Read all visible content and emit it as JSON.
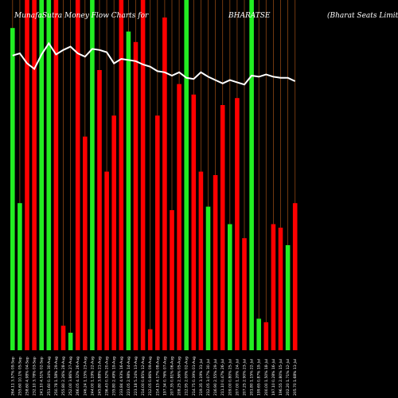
{
  "chart_data": {
    "type": "bar",
    "title_left": "MunafaSutra Money Flow Charts for",
    "title_symbol": "BHARATSE",
    "title_company": "(Bharat Seats Limit",
    "colors": {
      "up": "#22ee22",
      "down": "#ff0000",
      "line": "#ffffff",
      "grid": "#8b4513",
      "background": "#000000"
    },
    "volume_max": 100,
    "price_range": [
      0,
      100
    ],
    "bars": [
      {
        "label": "264.11 3.57% 09-Sep",
        "color": "up",
        "volume": 92,
        "price": 93
      },
      {
        "label": "255.60 10.1% 05-Sep",
        "color": "up",
        "volume": 42,
        "price": 95
      },
      {
        "label": "258.60 4.98% 04-Sep",
        "color": "down",
        "volume": 100,
        "price": 86
      },
      {
        "label": "232.10 3.78% 03-Sep",
        "color": "down",
        "volume": 100,
        "price": 81
      },
      {
        "label": "241.10 4.51% 02-Sep",
        "color": "up",
        "volume": 100,
        "price": 94
      },
      {
        "label": "251.60 0.34% 30-Aug",
        "color": "up",
        "volume": 100,
        "price": 104
      },
      {
        "label": "250.78 1.58% 29-Aug",
        "color": "down",
        "volume": 100,
        "price": 94
      },
      {
        "label": "255.80 2.26% 28-Aug",
        "color": "down",
        "volume": 7,
        "price": 98
      },
      {
        "label": "252.00 3.86% 27-Aug",
        "color": "up",
        "volume": 5,
        "price": 101
      },
      {
        "label": "266.05 4.32% 26-Aug",
        "color": "down",
        "volume": 100,
        "price": 95
      },
      {
        "label": "246.24 1.15% 23-Aug",
        "color": "down",
        "volume": 61,
        "price": 92
      },
      {
        "label": "244.00 1.19% 22-Aug",
        "color": "up",
        "volume": 100,
        "price": 99
      },
      {
        "label": "245.80 3.88% 21-Aug",
        "color": "down",
        "volume": 80,
        "price": 98
      },
      {
        "label": "236.43 0.52% 20-Aug",
        "color": "down",
        "volume": 51,
        "price": 96
      },
      {
        "label": "235.80 2.49% 19-Aug",
        "color": "down",
        "volume": 67,
        "price": 86
      },
      {
        "label": "233.84 4.93% 16-Aug",
        "color": "down",
        "volume": 100,
        "price": 90
      },
      {
        "label": "223.05 2.98% 14-Aug",
        "color": "up",
        "volume": 91,
        "price": 89
      },
      {
        "label": "223.18 5.24% 13-Aug",
        "color": "down",
        "volume": 88,
        "price": 88
      },
      {
        "label": "214.00 0.85% 12-Aug",
        "color": "down",
        "volume": 100,
        "price": 85
      },
      {
        "label": "212.05 0.86% 09-Aug",
        "color": "down",
        "volume": 6,
        "price": 83
      },
      {
        "label": "214.15 4.17% 08-Aug",
        "color": "down",
        "volume": 67,
        "price": 79
      },
      {
        "label": "197.34 0.76% 07-Aug",
        "color": "down",
        "volume": 95,
        "price": 78
      },
      {
        "label": "207.35 0.81% 06-Aug",
        "color": "down",
        "volume": 40,
        "price": 75
      },
      {
        "label": "208.25 2.56% 05-Aug",
        "color": "down",
        "volume": 76,
        "price": 78
      },
      {
        "label": "212.95 2.00% 02-Aug",
        "color": "up",
        "volume": 114,
        "price": 73
      },
      {
        "label": "214.75 0.39% 01-Aug",
        "color": "down",
        "volume": 73,
        "price": 72
      },
      {
        "label": "219.35 3.19% 31-Jul",
        "color": "down",
        "volume": 51,
        "price": 78
      },
      {
        "label": "212.05 3.07% 30-Jul",
        "color": "up",
        "volume": 41,
        "price": 74
      },
      {
        "label": "216.90 2.55% 29-Jul",
        "color": "down",
        "volume": 50,
        "price": 71
      },
      {
        "label": "211.10 0.47% 26-Jul",
        "color": "down",
        "volume": 70,
        "price": 68
      },
      {
        "label": "209.00 0.80% 25-Jul",
        "color": "up",
        "volume": 36,
        "price": 71
      },
      {
        "label": "207.00 1.20% 24-Jul",
        "color": "down",
        "volume": 72,
        "price": 69
      },
      {
        "label": "207.25 2.90% 23-Jul",
        "color": "down",
        "volume": 32,
        "price": 67
      },
      {
        "label": "201.80 1.15% 22-Jul",
        "color": "up",
        "volume": 100,
        "price": 75
      },
      {
        "label": "199.65 0.87% 19-Jul",
        "color": "up",
        "volume": 9,
        "price": 74
      },
      {
        "label": "200.00 1.50% 18-Jul",
        "color": "down",
        "volume": 8,
        "price": 76
      },
      {
        "label": "197.10 0.28% 16-Jul",
        "color": "down",
        "volume": 36,
        "price": 74
      },
      {
        "label": "196.55 2.80% 15-Jul",
        "color": "down",
        "volume": 35,
        "price": 73
      },
      {
        "label": "202.20 1.71% 12-Jul",
        "color": "up",
        "volume": 30,
        "price": 73
      },
      {
        "label": "205.70 1.68% 11-Jul",
        "color": "down",
        "volume": 42,
        "price": 70
      }
    ]
  }
}
